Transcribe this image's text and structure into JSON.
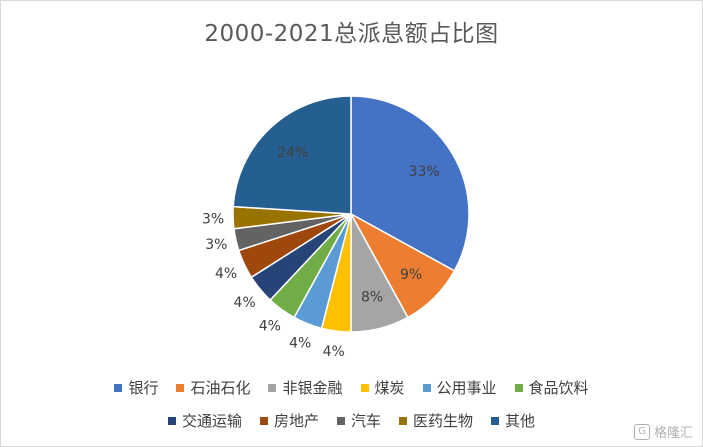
{
  "chart_data": {
    "type": "pie",
    "title": "2000-2021总派息额占比图",
    "categories": [
      "银行",
      "石油石化",
      "非银金融",
      "煤炭",
      "公用事业",
      "食品饮料",
      "交通运输",
      "房地产",
      "汽车",
      "医药生物",
      "其他"
    ],
    "values": [
      33,
      9,
      8,
      4,
      4,
      4,
      4,
      4,
      3,
      3,
      24
    ],
    "labels": [
      "33%",
      "9%",
      "8%",
      "4%",
      "4%",
      "4%",
      "4%",
      "4%",
      "3%",
      "3%",
      "24%"
    ],
    "colors": [
      "#4472C4",
      "#ED7D31",
      "#A5A5A5",
      "#FFC000",
      "#5B9BD5",
      "#70AD47",
      "#264478",
      "#9E480E",
      "#636363",
      "#997300",
      "#255E91"
    ],
    "legend_position": "bottom",
    "unit": "%"
  },
  "watermark": {
    "text": "格隆汇"
  }
}
